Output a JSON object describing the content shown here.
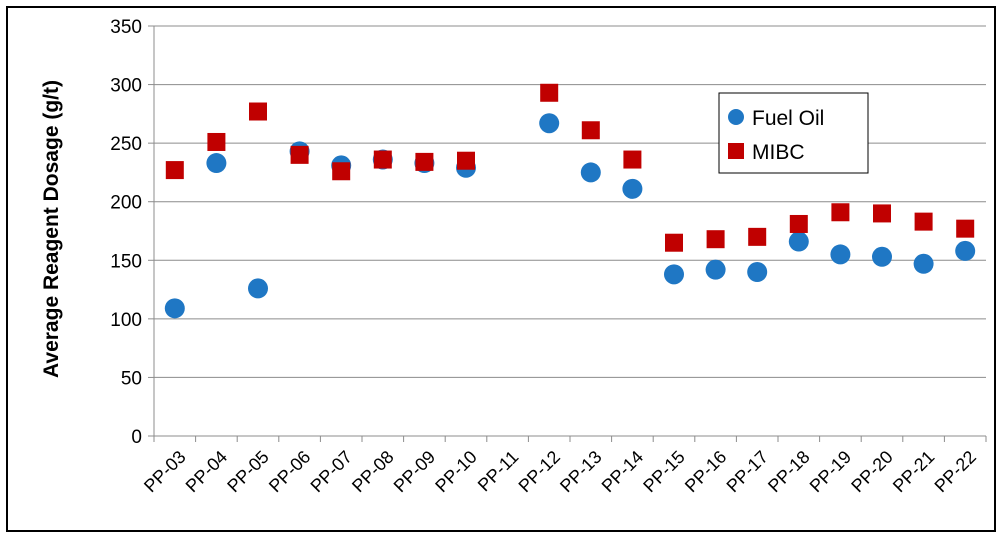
{
  "chart_data": {
    "type": "scatter",
    "title": "",
    "xlabel": "",
    "ylabel": "Average Reagent  Dosage (g/t)",
    "ylim": [
      0,
      350
    ],
    "yticks": [
      0,
      50,
      100,
      150,
      200,
      250,
      300,
      350
    ],
    "grid": true,
    "legend_position": "top-right",
    "categories": [
      "PP-03",
      "PP-04",
      "PP-05",
      "PP-06",
      "PP-07",
      "PP-08",
      "PP-09",
      "PP-10",
      "PP-11",
      "PP-12",
      "PP-13",
      "PP-14",
      "PP-15",
      "PP-16",
      "PP-17",
      "PP-18",
      "PP-19",
      "PP-20",
      "PP-21",
      "PP-22"
    ],
    "series": [
      {
        "name": "Fuel Oil",
        "marker": "circle",
        "color": "#1f77c4",
        "values": [
          109,
          233,
          126,
          243,
          231,
          236,
          233,
          229,
          null,
          267,
          225,
          211,
          138,
          142,
          140,
          166,
          155,
          153,
          147,
          158
        ]
      },
      {
        "name": "MIBC",
        "marker": "square",
        "color": "#c00000",
        "values": [
          227,
          251,
          277,
          240,
          226,
          236,
          234,
          235,
          null,
          293,
          261,
          236,
          165,
          168,
          170,
          181,
          191,
          190,
          183,
          177
        ]
      }
    ]
  }
}
